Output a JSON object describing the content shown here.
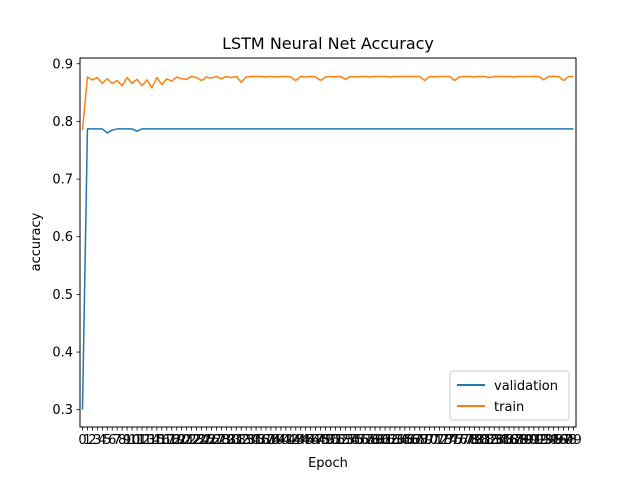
{
  "chart_data": {
    "type": "line",
    "title": "LSTM Neural Net Accuracy",
    "xlabel": "Epoch",
    "ylabel": "accuracy",
    "xlim": [
      -0.5,
      99.5
    ],
    "ylim": [
      0.27,
      0.91
    ],
    "yticks": [
      0.3,
      0.4,
      0.5,
      0.6,
      0.7,
      0.8,
      0.9
    ],
    "grid": false,
    "legend_position": "lower-right",
    "series": [
      {
        "name": "validation",
        "color": "#1f77b4",
        "x": [
          0,
          1,
          2,
          3,
          4,
          5,
          6,
          7,
          8,
          9,
          10,
          11,
          12,
          13,
          14,
          15,
          16,
          17,
          18,
          19,
          20,
          21,
          22,
          23,
          24,
          25,
          26,
          27,
          28,
          29,
          30,
          31,
          32,
          33,
          34,
          35,
          36,
          37,
          38,
          39,
          40,
          41,
          42,
          43,
          44,
          45,
          46,
          47,
          48,
          49,
          50,
          51,
          52,
          53,
          54,
          55,
          56,
          57,
          58,
          59,
          60,
          61,
          62,
          63,
          64,
          65,
          66,
          67,
          68,
          69,
          70,
          71,
          72,
          73,
          74,
          75,
          76,
          77,
          78,
          79,
          80,
          81,
          82,
          83,
          84,
          85,
          86,
          87,
          88,
          89,
          90,
          91,
          92,
          93,
          94,
          95,
          96,
          97,
          98,
          99
        ],
        "values": [
          0.3,
          0.787,
          0.787,
          0.787,
          0.787,
          0.78,
          0.785,
          0.787,
          0.787,
          0.787,
          0.787,
          0.783,
          0.787,
          0.787,
          0.787,
          0.787,
          0.787,
          0.787,
          0.787,
          0.787,
          0.787,
          0.787,
          0.787,
          0.787,
          0.787,
          0.787,
          0.787,
          0.787,
          0.787,
          0.787,
          0.787,
          0.787,
          0.787,
          0.787,
          0.787,
          0.787,
          0.787,
          0.787,
          0.787,
          0.787,
          0.787,
          0.787,
          0.787,
          0.787,
          0.787,
          0.787,
          0.787,
          0.787,
          0.787,
          0.787,
          0.787,
          0.787,
          0.787,
          0.787,
          0.787,
          0.787,
          0.787,
          0.787,
          0.787,
          0.787,
          0.787,
          0.787,
          0.787,
          0.787,
          0.787,
          0.787,
          0.787,
          0.787,
          0.787,
          0.787,
          0.787,
          0.787,
          0.787,
          0.787,
          0.787,
          0.787,
          0.787,
          0.787,
          0.787,
          0.787,
          0.787,
          0.787,
          0.787,
          0.787,
          0.787,
          0.787,
          0.787,
          0.787,
          0.787,
          0.787,
          0.787,
          0.787,
          0.787,
          0.787,
          0.787,
          0.787,
          0.787,
          0.787,
          0.787,
          0.787
        ]
      },
      {
        "name": "train",
        "color": "#ff7f0e",
        "x": [
          0,
          1,
          2,
          3,
          4,
          5,
          6,
          7,
          8,
          9,
          10,
          11,
          12,
          13,
          14,
          15,
          16,
          17,
          18,
          19,
          20,
          21,
          22,
          23,
          24,
          25,
          26,
          27,
          28,
          29,
          30,
          31,
          32,
          33,
          34,
          35,
          36,
          37,
          38,
          39,
          40,
          41,
          42,
          43,
          44,
          45,
          46,
          47,
          48,
          49,
          50,
          51,
          52,
          53,
          54,
          55,
          56,
          57,
          58,
          59,
          60,
          61,
          62,
          63,
          64,
          65,
          66,
          67,
          68,
          69,
          70,
          71,
          72,
          73,
          74,
          75,
          76,
          77,
          78,
          79,
          80,
          81,
          82,
          83,
          84,
          85,
          86,
          87,
          88,
          89,
          90,
          91,
          92,
          93,
          94,
          95,
          96,
          97,
          98,
          99
        ],
        "values": [
          0.785,
          0.877,
          0.872,
          0.876,
          0.866,
          0.874,
          0.866,
          0.871,
          0.862,
          0.876,
          0.866,
          0.873,
          0.862,
          0.872,
          0.858,
          0.876,
          0.864,
          0.874,
          0.87,
          0.877,
          0.874,
          0.873,
          0.878,
          0.876,
          0.871,
          0.877,
          0.875,
          0.878,
          0.874,
          0.878,
          0.876,
          0.878,
          0.868,
          0.877,
          0.878,
          0.878,
          0.878,
          0.877,
          0.878,
          0.877,
          0.878,
          0.878,
          0.877,
          0.871,
          0.878,
          0.877,
          0.878,
          0.877,
          0.871,
          0.877,
          0.878,
          0.877,
          0.878,
          0.873,
          0.878,
          0.877,
          0.878,
          0.878,
          0.877,
          0.878,
          0.878,
          0.878,
          0.877,
          0.878,
          0.878,
          0.878,
          0.878,
          0.878,
          0.878,
          0.871,
          0.878,
          0.877,
          0.878,
          0.878,
          0.878,
          0.871,
          0.877,
          0.878,
          0.878,
          0.877,
          0.878,
          0.878,
          0.876,
          0.878,
          0.878,
          0.878,
          0.878,
          0.877,
          0.878,
          0.878,
          0.878,
          0.878,
          0.878,
          0.872,
          0.878,
          0.878,
          0.878,
          0.871,
          0.878,
          0.878
        ]
      }
    ]
  }
}
